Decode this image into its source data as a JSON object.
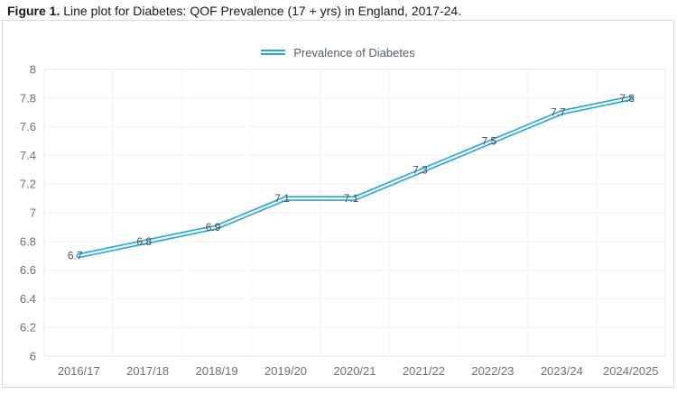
{
  "figure": {
    "title_prefix": "Figure 1.",
    "title_rest": " Line plot for Diabetes: QOF Prevalence (17 + yrs) in England, 2017-24."
  },
  "legend": {
    "label": "Prevalence of Diabetes"
  },
  "colors": {
    "line": "#27a7df",
    "line_gap": "#ffffff",
    "grid": "#f2f2f2",
    "plot_border": "#e5e5e5",
    "box_border": "#d9d9d9",
    "tick_label": "#707070",
    "data_label": "#4d4d4d",
    "legend_text": "#54606c",
    "title_text": "#1a1a1a"
  },
  "chart_data": {
    "type": "line",
    "title": "",
    "xlabel": "",
    "ylabel": "",
    "categories": [
      "2016/17",
      "2017/18",
      "2018/19",
      "2019/20",
      "2020/21",
      "2021/22",
      "2022/23",
      "2023/24",
      "2024/2025"
    ],
    "series": [
      {
        "name": "Prevalence of Diabetes",
        "values": [
          6.7,
          6.8,
          6.9,
          7.1,
          7.1,
          7.3,
          7.5,
          7.7,
          7.8
        ],
        "labels": [
          "6.7",
          "6.8",
          "6.9",
          "7.1",
          "7.1",
          "7.3",
          "7.5",
          "7.7",
          "7.8"
        ]
      }
    ],
    "ylim": [
      6,
      8
    ],
    "yticks": [
      6,
      6.2,
      6.4,
      6.6,
      6.8,
      7,
      7.2,
      7.4,
      7.6,
      7.8,
      8
    ],
    "ytick_labels": [
      "6",
      "6.2",
      "6.4",
      "6.6",
      "6.8",
      "7",
      "7.2",
      "7.4",
      "7.6",
      "7.8",
      "8"
    ],
    "grid": true,
    "data_labels": true,
    "legend_position": "top-center",
    "line_style": "double"
  }
}
